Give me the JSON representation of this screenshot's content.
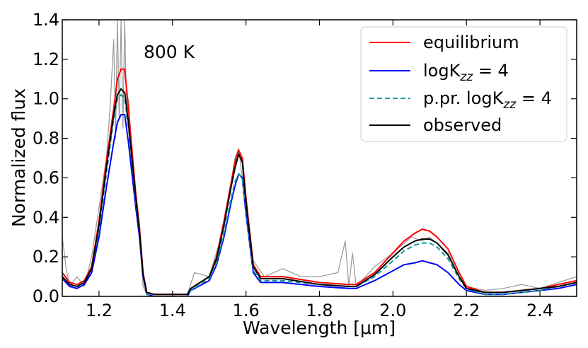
{
  "chart_data": {
    "type": "line",
    "title": "",
    "annotation": "800 K",
    "xlabel": "Wavelength [μm]",
    "ylabel": "Normalized flux",
    "xlim": [
      1.1,
      2.5
    ],
    "ylim": [
      0.0,
      1.4
    ],
    "x_ticks": [
      1.2,
      1.4,
      1.6,
      1.8,
      2.0,
      2.2,
      2.4
    ],
    "x_tick_labels": [
      "1.2",
      "1.4",
      "1.6",
      "1.8",
      "2.0",
      "2.2",
      "2.4"
    ],
    "y_ticks": [
      0.0,
      0.2,
      0.4,
      0.6,
      0.8,
      1.0,
      1.2,
      1.4
    ],
    "y_tick_labels": [
      "0.0",
      "0.2",
      "0.4",
      "0.6",
      "0.8",
      "1.0",
      "1.2",
      "1.4"
    ],
    "grid": false,
    "legend_position": "top-right",
    "series": [
      {
        "name": "equilibrium",
        "legend_main": "equilibrium",
        "legend_sub": "",
        "legend_suffix": "",
        "color": "#ff0000",
        "dash": "solid",
        "x": [
          1.1,
          1.12,
          1.14,
          1.16,
          1.18,
          1.2,
          1.22,
          1.24,
          1.25,
          1.26,
          1.27,
          1.28,
          1.3,
          1.31,
          1.32,
          1.33,
          1.35,
          1.4,
          1.44,
          1.45,
          1.5,
          1.52,
          1.54,
          1.56,
          1.57,
          1.58,
          1.59,
          1.6,
          1.62,
          1.64,
          1.7,
          1.8,
          1.88,
          1.9,
          1.95,
          2.0,
          2.03,
          2.06,
          2.08,
          2.1,
          2.12,
          2.15,
          2.18,
          2.2,
          2.25,
          2.3,
          2.35,
          2.4,
          2.45,
          2.5
        ],
        "y": [
          0.12,
          0.07,
          0.06,
          0.08,
          0.15,
          0.38,
          0.68,
          0.95,
          1.1,
          1.15,
          1.15,
          0.95,
          0.52,
          0.35,
          0.12,
          0.02,
          0.01,
          0.01,
          0.01,
          0.04,
          0.1,
          0.2,
          0.38,
          0.58,
          0.68,
          0.74,
          0.7,
          0.5,
          0.16,
          0.1,
          0.1,
          0.07,
          0.06,
          0.06,
          0.12,
          0.22,
          0.28,
          0.32,
          0.34,
          0.33,
          0.3,
          0.24,
          0.12,
          0.05,
          0.02,
          0.02,
          0.03,
          0.04,
          0.06,
          0.08
        ]
      },
      {
        "name": "logK_zz = 4",
        "legend_main": "logK",
        "legend_sub": "zz",
        "legend_suffix": " = 4",
        "color": "#0000ff",
        "dash": "solid",
        "x": [
          1.1,
          1.12,
          1.14,
          1.16,
          1.18,
          1.2,
          1.22,
          1.24,
          1.25,
          1.26,
          1.27,
          1.28,
          1.3,
          1.31,
          1.32,
          1.33,
          1.35,
          1.4,
          1.44,
          1.45,
          1.5,
          1.52,
          1.54,
          1.56,
          1.57,
          1.58,
          1.59,
          1.6,
          1.62,
          1.64,
          1.7,
          1.8,
          1.88,
          1.9,
          1.95,
          2.0,
          2.03,
          2.06,
          2.08,
          2.1,
          2.12,
          2.15,
          2.18,
          2.2,
          2.25,
          2.3,
          2.35,
          2.4,
          2.45,
          2.5
        ],
        "y": [
          0.09,
          0.05,
          0.04,
          0.06,
          0.12,
          0.3,
          0.55,
          0.78,
          0.88,
          0.92,
          0.92,
          0.78,
          0.45,
          0.3,
          0.1,
          0.01,
          0.0,
          0.0,
          0.0,
          0.03,
          0.08,
          0.16,
          0.3,
          0.48,
          0.56,
          0.62,
          0.6,
          0.42,
          0.12,
          0.07,
          0.07,
          0.05,
          0.04,
          0.04,
          0.08,
          0.13,
          0.16,
          0.17,
          0.18,
          0.17,
          0.16,
          0.12,
          0.06,
          0.03,
          0.01,
          0.01,
          0.02,
          0.03,
          0.04,
          0.06
        ]
      },
      {
        "name": "p.pr. logK_zz = 4",
        "legend_main": "p.pr. logK",
        "legend_sub": "zz",
        "legend_suffix": " = 4",
        "color": "#0e9a9a",
        "dash": "dashed",
        "x": [
          1.1,
          1.12,
          1.14,
          1.16,
          1.18,
          1.2,
          1.22,
          1.24,
          1.25,
          1.26,
          1.27,
          1.28,
          1.3,
          1.31,
          1.32,
          1.33,
          1.35,
          1.4,
          1.44,
          1.45,
          1.5,
          1.52,
          1.54,
          1.56,
          1.57,
          1.58,
          1.59,
          1.6,
          1.62,
          1.64,
          1.7,
          1.8,
          1.88,
          1.9,
          1.95,
          2.0,
          2.03,
          2.06,
          2.08,
          2.1,
          2.12,
          2.15,
          2.18,
          2.2,
          2.25,
          2.3,
          2.35,
          2.4,
          2.45,
          2.5
        ],
        "y": [
          0.1,
          0.06,
          0.05,
          0.07,
          0.14,
          0.34,
          0.62,
          0.9,
          1.0,
          1.02,
          1.0,
          0.86,
          0.48,
          0.32,
          0.11,
          0.01,
          0.0,
          0.0,
          0.0,
          0.03,
          0.09,
          0.17,
          0.32,
          0.5,
          0.58,
          0.62,
          0.6,
          0.44,
          0.13,
          0.08,
          0.08,
          0.06,
          0.05,
          0.05,
          0.1,
          0.18,
          0.23,
          0.26,
          0.27,
          0.27,
          0.25,
          0.19,
          0.09,
          0.04,
          0.01,
          0.01,
          0.02,
          0.03,
          0.05,
          0.07
        ]
      },
      {
        "name": "observed",
        "legend_main": "observed",
        "legend_sub": "",
        "legend_suffix": "",
        "color": "#000000",
        "dash": "solid",
        "x": [
          1.1,
          1.12,
          1.14,
          1.16,
          1.18,
          1.2,
          1.22,
          1.24,
          1.25,
          1.26,
          1.27,
          1.28,
          1.3,
          1.31,
          1.32,
          1.33,
          1.35,
          1.4,
          1.44,
          1.45,
          1.5,
          1.52,
          1.54,
          1.56,
          1.57,
          1.58,
          1.59,
          1.6,
          1.62,
          1.64,
          1.7,
          1.8,
          1.88,
          1.9,
          1.95,
          2.0,
          2.03,
          2.06,
          2.08,
          2.1,
          2.12,
          2.15,
          2.18,
          2.2,
          2.25,
          2.3,
          2.35,
          2.4,
          2.45,
          2.5
        ],
        "y": [
          0.1,
          0.06,
          0.05,
          0.07,
          0.14,
          0.36,
          0.65,
          0.92,
          1.02,
          1.05,
          1.03,
          0.88,
          0.5,
          0.33,
          0.11,
          0.02,
          0.01,
          0.01,
          0.01,
          0.04,
          0.1,
          0.19,
          0.36,
          0.56,
          0.65,
          0.72,
          0.68,
          0.48,
          0.15,
          0.09,
          0.09,
          0.06,
          0.05,
          0.05,
          0.11,
          0.2,
          0.25,
          0.28,
          0.29,
          0.29,
          0.27,
          0.21,
          0.1,
          0.04,
          0.02,
          0.02,
          0.03,
          0.04,
          0.05,
          0.07
        ]
      },
      {
        "name": "",
        "legend_main": "",
        "legend_sub": "",
        "legend_suffix": "",
        "color": "#999999",
        "dash": "solid",
        "x": [
          1.1,
          1.11,
          1.12,
          1.14,
          1.16,
          1.18,
          1.2,
          1.22,
          1.23,
          1.24,
          1.245,
          1.25,
          1.255,
          1.26,
          1.265,
          1.27,
          1.275,
          1.28,
          1.29,
          1.3,
          1.31,
          1.32,
          1.33,
          1.4,
          1.44,
          1.46,
          1.5,
          1.54,
          1.57,
          1.58,
          1.6,
          1.62,
          1.65,
          1.7,
          1.75,
          1.8,
          1.85,
          1.87,
          1.88,
          1.89,
          1.9,
          1.95,
          2.0,
          2.05,
          2.08,
          2.1,
          2.15,
          2.18,
          2.2,
          2.25,
          2.3,
          2.35,
          2.4,
          2.45,
          2.5
        ],
        "y": [
          0.3,
          0.15,
          0.05,
          0.1,
          0.05,
          0.2,
          0.45,
          0.7,
          0.95,
          1.3,
          0.8,
          1.4,
          0.9,
          1.4,
          0.85,
          1.4,
          0.9,
          1.0,
          0.7,
          0.45,
          0.3,
          0.05,
          0.01,
          0.01,
          0.01,
          0.12,
          0.1,
          0.35,
          0.7,
          0.75,
          0.45,
          0.18,
          0.1,
          0.14,
          0.1,
          0.1,
          0.12,
          0.28,
          0.05,
          0.22,
          0.05,
          0.15,
          0.22,
          0.3,
          0.28,
          0.3,
          0.22,
          0.1,
          0.05,
          0.03,
          0.04,
          0.06,
          0.04,
          0.07,
          0.1
        ]
      }
    ]
  }
}
